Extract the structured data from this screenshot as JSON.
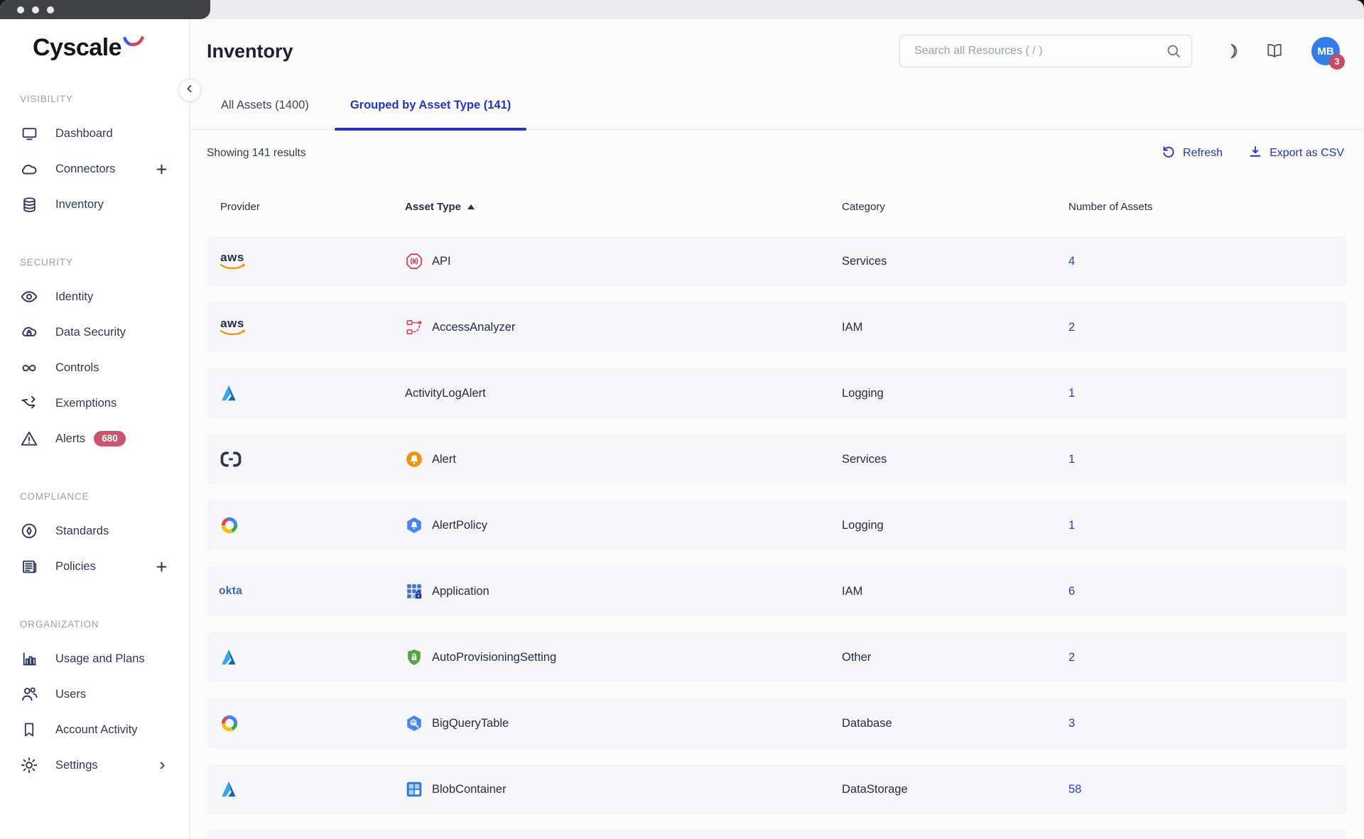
{
  "window": {
    "traffic_dots": 3
  },
  "brand": {
    "name": "Cyscale"
  },
  "sidebar": {
    "sections": [
      {
        "label": "VISIBILITY",
        "items": [
          {
            "label": "Dashboard",
            "icon": "monitor"
          },
          {
            "label": "Connectors",
            "icon": "cloud",
            "action": "plus"
          },
          {
            "label": "Inventory",
            "icon": "database"
          }
        ]
      },
      {
        "label": "SECURITY",
        "items": [
          {
            "label": "Identity",
            "icon": "eye"
          },
          {
            "label": "Data Security",
            "icon": "cloud-lock"
          },
          {
            "label": "Controls",
            "icon": "infinity"
          },
          {
            "label": "Exemptions",
            "icon": "branch-arrow"
          },
          {
            "label": "Alerts",
            "icon": "warning-triangle",
            "badge": "680"
          }
        ]
      },
      {
        "label": "COMPLIANCE",
        "items": [
          {
            "label": "Standards",
            "icon": "compass"
          },
          {
            "label": "Policies",
            "icon": "newspaper",
            "action": "plus"
          }
        ]
      },
      {
        "label": "ORGANIZATION",
        "items": [
          {
            "label": "Usage and Plans",
            "icon": "bar-chart"
          },
          {
            "label": "Users",
            "icon": "users"
          },
          {
            "label": "Account Activity",
            "icon": "bookmark"
          },
          {
            "label": "Settings",
            "icon": "gear",
            "action": "chevron-right"
          }
        ]
      }
    ]
  },
  "header": {
    "title": "Inventory",
    "search_placeholder": "Search all Resources ( / )",
    "avatar": {
      "initials": "MB",
      "badge": "3"
    }
  },
  "tabs": [
    {
      "label": "All Assets (1400)",
      "active": false
    },
    {
      "label": "Grouped by Asset Type (141)",
      "active": true
    }
  ],
  "toolbar": {
    "results_text": "Showing 141 results",
    "refresh_label": "Refresh",
    "export_label": "Export as CSV"
  },
  "table": {
    "columns": [
      "Provider",
      "Asset Type",
      "Category",
      "Number of Assets"
    ],
    "sort_column": "Asset Type",
    "sort_direction": "asc",
    "rows": [
      {
        "provider": "aws",
        "asset_icon": "api-gateway",
        "asset_type": "API",
        "category": "Services",
        "count": "4"
      },
      {
        "provider": "aws",
        "asset_icon": "access-analyzer",
        "asset_type": "AccessAnalyzer",
        "category": "IAM",
        "count": "2"
      },
      {
        "provider": "azure",
        "asset_icon": null,
        "asset_type": "ActivityLogAlert",
        "category": "Logging",
        "count": "1"
      },
      {
        "provider": "brackets",
        "asset_icon": "alert-orange",
        "asset_type": "Alert",
        "category": "Services",
        "count": "1"
      },
      {
        "provider": "gcp",
        "asset_icon": "alert-policy",
        "asset_type": "AlertPolicy",
        "category": "Logging",
        "count": "1"
      },
      {
        "provider": "okta",
        "asset_icon": "app-grid",
        "asset_type": "Application",
        "category": "IAM",
        "count": "6"
      },
      {
        "provider": "azure",
        "asset_icon": "shield-lock",
        "asset_type": "AutoProvisioningSetting",
        "category": "Other",
        "count": "2"
      },
      {
        "provider": "gcp",
        "asset_icon": "bigquery",
        "asset_type": "BigQueryTable",
        "category": "Database",
        "count": "3"
      },
      {
        "provider": "azure",
        "asset_icon": "blob-container",
        "asset_type": "BlobContainer",
        "category": "DataStorage",
        "count": "58"
      }
    ]
  },
  "colors": {
    "accent_blue": "#2336bd",
    "link_blue": "#2540c7",
    "alerts_badge": "#c9566f",
    "avatar_bg": "#337de8",
    "avatar_badge": "#cb4b5e",
    "aws_orange": "#f0920e",
    "azure_blue": "#2e8ce0",
    "okta_blue": "#3464d1",
    "gcp_red": "#ea4335",
    "gcp_blue": "#4285f4",
    "gcp_yellow": "#fbbc05",
    "gcp_green": "#34a853",
    "api_red": "#cf4a5e",
    "shield_green": "#56a445",
    "row_band": "#f6f6f8"
  }
}
